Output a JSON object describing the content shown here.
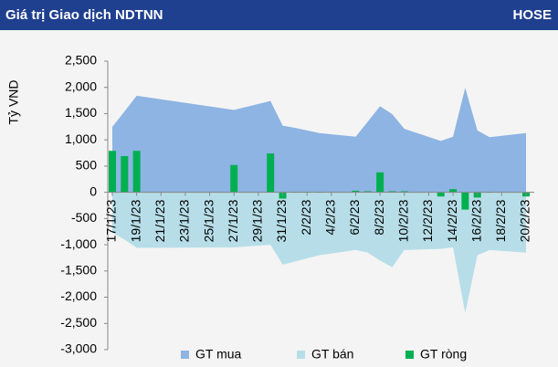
{
  "chart_data": {
    "type": "area",
    "title": "Giá trị Giao dịch NDTNN",
    "subtitle": "HOSE",
    "y_label": "Tỷ VND",
    "x": [
      "17/1/23",
      "18/1/23",
      "19/1/23",
      "27/1/23",
      "30/1/23",
      "31/1/23",
      "1/2/23",
      "2/2/23",
      "3/2/23",
      "6/2/23",
      "7/2/23",
      "8/2/23",
      "9/2/23",
      "10/2/23",
      "13/2/23",
      "14/2/23",
      "15/2/23",
      "16/2/23",
      "17/2/23",
      "20/2/23"
    ],
    "xlim": [
      "17/1/23",
      "20/2/23"
    ],
    "xticks": [
      "17/1/23",
      "19/1/23",
      "21/1/23",
      "23/1/23",
      "25/1/23",
      "27/1/23",
      "29/1/23",
      "31/1/23",
      "2/2/23",
      "4/2/23",
      "6/2/23",
      "8/2/23",
      "10/2/23",
      "12/2/23",
      "14/2/23",
      "16/2/23",
      "18/2/23",
      "20/2/23"
    ],
    "ylim": [
      -3000,
      2500
    ],
    "yticks": [
      {
        "value": -3000,
        "label": "-3,000"
      },
      {
        "value": -2500,
        "label": "-2,500"
      },
      {
        "value": -2000,
        "label": "-2,000"
      },
      {
        "value": -1500,
        "label": "-1,500"
      },
      {
        "value": -1000,
        "label": "-1,000"
      },
      -500,
      0,
      500,
      {
        "value": 1000,
        "label": "1,000"
      },
      {
        "value": 1500,
        "label": "1,500"
      },
      {
        "value": 2000,
        "label": "2,000"
      },
      {
        "value": 2500,
        "label": "2,500"
      }
    ],
    "series": [
      {
        "name": "GT mua",
        "color": "#8db4e2",
        "kind": "area",
        "values": [
          1250,
          1540,
          1840,
          1570,
          1740,
          1270,
          1230,
          1180,
          1130,
          1060,
          1350,
          1640,
          1490,
          1210,
          980,
          1060,
          1990,
          1180,
          1050,
          1130
        ]
      },
      {
        "name": "GT bán",
        "color": "#b7dee8",
        "kind": "area",
        "values": [
          -770,
          -900,
          -1060,
          -1050,
          -1000,
          -1380,
          -1320,
          -1260,
          -1200,
          -1100,
          -1150,
          -1300,
          -1430,
          -1100,
          -1080,
          -1050,
          -2300,
          -1200,
          -1100,
          -1150
        ]
      },
      {
        "name": "GT ròng",
        "color": "#00b050",
        "kind": "bar",
        "values": [
          790,
          690,
          790,
          520,
          740,
          -120,
          10,
          10,
          10,
          30,
          20,
          380,
          20,
          20,
          -80,
          60,
          -330,
          -100,
          10,
          -80
        ]
      }
    ]
  }
}
